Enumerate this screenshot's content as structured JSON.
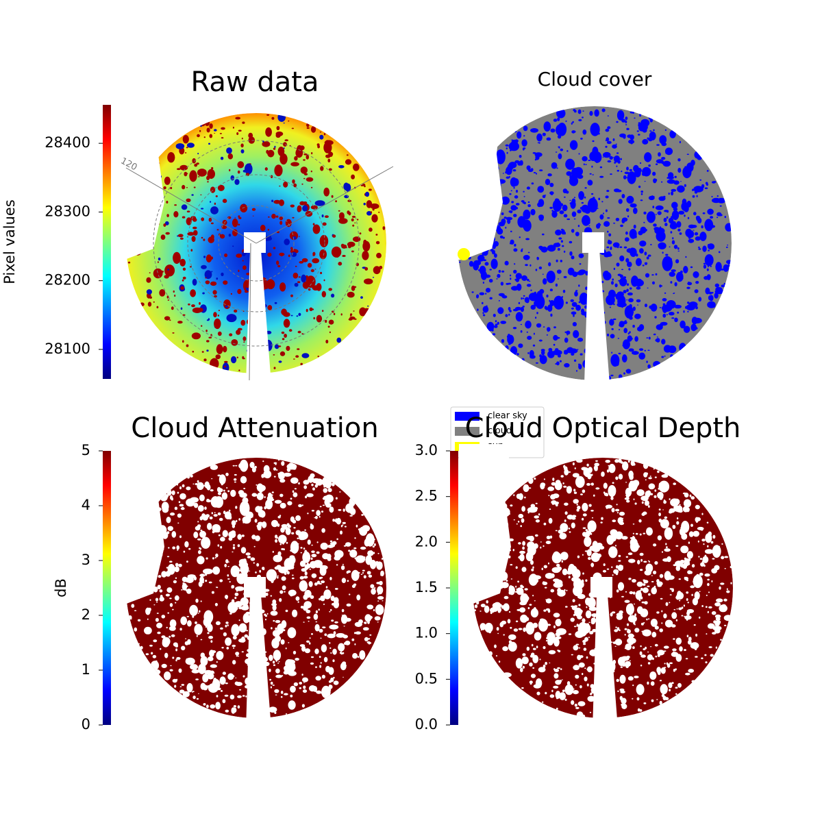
{
  "chart_data": [
    {
      "type": "image",
      "title": "Raw data",
      "colormap": "jet",
      "ylabel": "Pixel values",
      "ylim": [
        28057,
        28456
      ],
      "yticks": [
        28100,
        28200,
        28300,
        28400
      ],
      "annotations": [
        "120"
      ]
    },
    {
      "type": "image",
      "title": "Cloud cover",
      "legend": "lower left",
      "series": [
        {
          "name": "clear sky",
          "color": "#0000ff"
        },
        {
          "name": "cloud",
          "color": "#808080"
        },
        {
          "name": "sun",
          "color": "#ffff00"
        }
      ]
    },
    {
      "type": "image",
      "title": "Cloud Attenuation",
      "colormap": "jet",
      "ylabel": "dB",
      "ylim": [
        0,
        5
      ],
      "yticks": [
        0,
        1,
        2,
        3,
        4,
        5
      ]
    },
    {
      "type": "image",
      "title": "Cloud Optical Depth",
      "colormap": "jet",
      "ylim": [
        0,
        3
      ],
      "yticks": [
        {
          "value": 0,
          "label": "0.0"
        },
        {
          "value": 0.5,
          "label": "0.5"
        },
        {
          "value": 1,
          "label": "1.0"
        },
        {
          "value": 1.5,
          "label": "1.5"
        },
        {
          "value": 2,
          "label": "2.0"
        },
        {
          "value": 2.5,
          "label": "2.5"
        },
        {
          "value": 3,
          "label": "3.0"
        }
      ]
    }
  ]
}
